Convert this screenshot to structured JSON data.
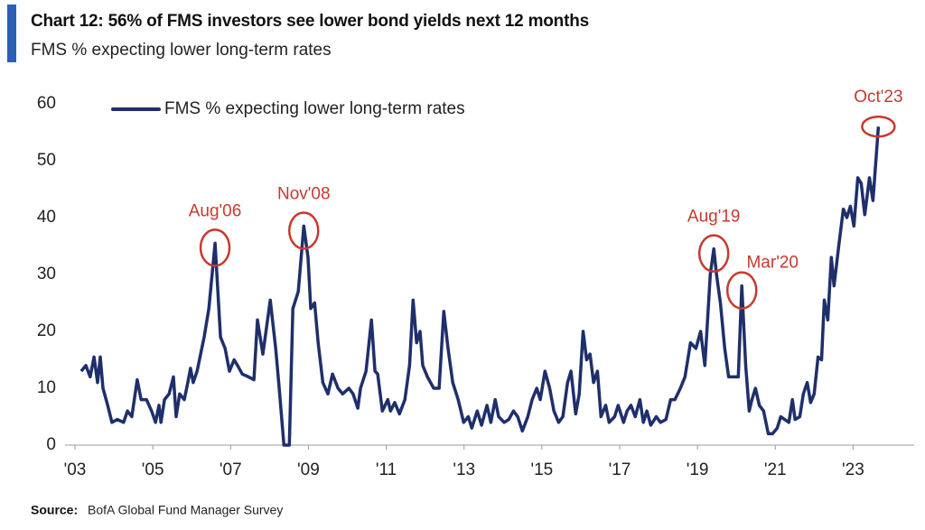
{
  "chart_data": {
    "type": "line",
    "title": "Chart 12: 56% of FMS investors see lower bond yields next 12 months",
    "subtitle": "FMS % expecting lower long-term rates",
    "source_label": "Source:",
    "source": "BofA Global Fund Manager Survey",
    "xlim": [
      2003,
      2024.5
    ],
    "ylim": [
      0,
      60
    ],
    "xticks": [
      {
        "value": 2003,
        "label": "'03"
      },
      {
        "value": 2005,
        "label": "'05"
      },
      {
        "value": 2007,
        "label": "'07"
      },
      {
        "value": 2009,
        "label": "'09"
      },
      {
        "value": 2011,
        "label": "'11"
      },
      {
        "value": 2013,
        "label": "'13"
      },
      {
        "value": 2015,
        "label": "'15"
      },
      {
        "value": 2017,
        "label": "'17"
      },
      {
        "value": 2019,
        "label": "'19"
      },
      {
        "value": 2021,
        "label": "'21"
      },
      {
        "value": 2023,
        "label": "'23"
      }
    ],
    "yticks": [
      0,
      10,
      20,
      30,
      40,
      50,
      60
    ],
    "grid": false,
    "legend": "top-left",
    "x": [
      2003.16,
      2003.28,
      2003.39,
      2003.49,
      2003.58,
      2003.65,
      2003.72,
      2003.84,
      2003.95,
      2004.09,
      2004.25,
      2004.35,
      2004.46,
      2004.6,
      2004.7,
      2004.84,
      2004.97,
      2005.07,
      2005.16,
      2005.21,
      2005.3,
      2005.42,
      2005.53,
      2005.6,
      2005.69,
      2005.81,
      2005.9,
      2005.97,
      2006.04,
      2006.14,
      2006.23,
      2006.32,
      2006.44,
      2006.6,
      2006.74,
      2006.86,
      2006.97,
      2007.09,
      2007.18,
      2007.3,
      2007.46,
      2007.6,
      2007.69,
      2007.83,
      2008.02,
      2008.16,
      2008.25,
      2008.37,
      2008.51,
      2008.6,
      2008.74,
      2008.88,
      2008.99,
      2009.06,
      2009.16,
      2009.25,
      2009.37,
      2009.5,
      2009.62,
      2009.76,
      2009.88,
      2010.04,
      2010.15,
      2010.27,
      2010.34,
      2010.48,
      2010.62,
      2010.71,
      2010.78,
      2010.9,
      2011.04,
      2011.11,
      2011.22,
      2011.34,
      2011.48,
      2011.6,
      2011.69,
      2011.78,
      2011.87,
      2011.94,
      2012.06,
      2012.22,
      2012.36,
      2012.48,
      2012.59,
      2012.71,
      2012.85,
      2012.99,
      2013.11,
      2013.2,
      2013.34,
      2013.45,
      2013.59,
      2013.69,
      2013.8,
      2013.89,
      2014.03,
      2014.15,
      2014.27,
      2014.38,
      2014.5,
      2014.64,
      2014.75,
      2014.87,
      2014.96,
      2015.08,
      2015.2,
      2015.31,
      2015.43,
      2015.54,
      2015.66,
      2015.75,
      2015.87,
      2015.96,
      2016.06,
      2016.15,
      2016.24,
      2016.33,
      2016.43,
      2016.52,
      2016.64,
      2016.73,
      2016.87,
      2016.96,
      2017.1,
      2017.19,
      2017.29,
      2017.4,
      2017.52,
      2017.61,
      2017.7,
      2017.8,
      2017.94,
      2018.05,
      2018.19,
      2018.31,
      2018.42,
      2018.56,
      2018.68,
      2018.82,
      2018.96,
      2019.08,
      2019.19,
      2019.33,
      2019.42,
      2019.49,
      2019.59,
      2019.7,
      2019.8,
      2019.93,
      2020.05,
      2020.14,
      2020.24,
      2020.33,
      2020.4,
      2020.49,
      2020.59,
      2020.7,
      2020.82,
      2020.93,
      2021.05,
      2021.14,
      2021.24,
      2021.35,
      2021.44,
      2021.51,
      2021.63,
      2021.72,
      2021.82,
      2021.91,
      2022.0,
      2022.1,
      2022.19,
      2022.26,
      2022.35,
      2022.44,
      2022.51,
      2022.63,
      2022.75,
      2022.84,
      2022.93,
      2023.02,
      2023.12,
      2023.21,
      2023.3,
      2023.42,
      2023.51,
      2023.65
    ],
    "series": [
      {
        "name": "FMS % expecting lower long-term rates",
        "color": "#1f2f6b",
        "values": [
          13,
          14,
          12,
          15.5,
          11,
          15.5,
          10,
          7,
          4,
          4.5,
          4,
          6,
          5,
          11.5,
          8,
          8,
          6,
          4,
          7,
          4,
          8,
          9,
          12,
          5,
          9,
          8,
          11,
          13.5,
          11,
          13,
          16,
          19,
          24,
          35.5,
          19,
          17,
          13,
          15,
          14,
          12.5,
          12,
          11.5,
          22,
          16,
          25.5,
          17,
          10,
          0,
          0,
          24,
          27,
          38.5,
          33,
          24,
          25,
          18,
          11,
          9,
          12.5,
          10,
          9,
          10,
          9,
          6.5,
          10,
          13,
          22,
          13,
          12.5,
          6,
          8,
          6,
          7.5,
          5.5,
          8,
          14,
          25.5,
          18,
          20,
          14,
          12,
          10,
          10,
          23.5,
          17,
          11,
          8,
          4,
          5,
          3,
          6,
          3.5,
          7,
          4,
          8,
          5,
          4,
          4.5,
          6,
          5,
          2.5,
          5,
          8,
          10,
          8,
          13,
          10,
          6,
          4,
          5,
          11,
          13,
          5.5,
          9,
          20,
          15,
          16,
          11,
          13,
          5,
          7,
          4,
          5,
          7,
          4,
          6,
          7,
          5,
          8,
          4,
          6,
          3.5,
          5,
          4,
          4.5,
          8,
          8,
          10,
          12,
          18,
          17,
          20,
          14,
          30,
          34.5,
          30,
          25,
          17,
          12,
          12,
          12,
          28,
          14,
          6,
          8,
          10,
          7,
          6,
          2,
          2,
          3,
          5,
          4.5,
          4,
          8,
          4.5,
          5,
          9,
          11,
          7.5,
          9,
          15.5,
          15,
          25.5,
          22,
          33,
          28,
          35,
          41.5,
          40,
          42,
          38.5,
          47,
          46,
          40.5,
          47,
          43,
          56
        ]
      }
    ],
    "annotations": [
      {
        "text": "Aug'06",
        "x": 2006.6,
        "y": 35.5
      },
      {
        "text": "Nov'08",
        "x": 2008.88,
        "y": 38.5
      },
      {
        "text": "Aug'19",
        "x": 2019.42,
        "y": 34.5
      },
      {
        "text": "Mar'20",
        "x": 2020.14,
        "y": 28
      },
      {
        "text": "Oct'23",
        "x": 2023.65,
        "y": 56
      }
    ]
  }
}
